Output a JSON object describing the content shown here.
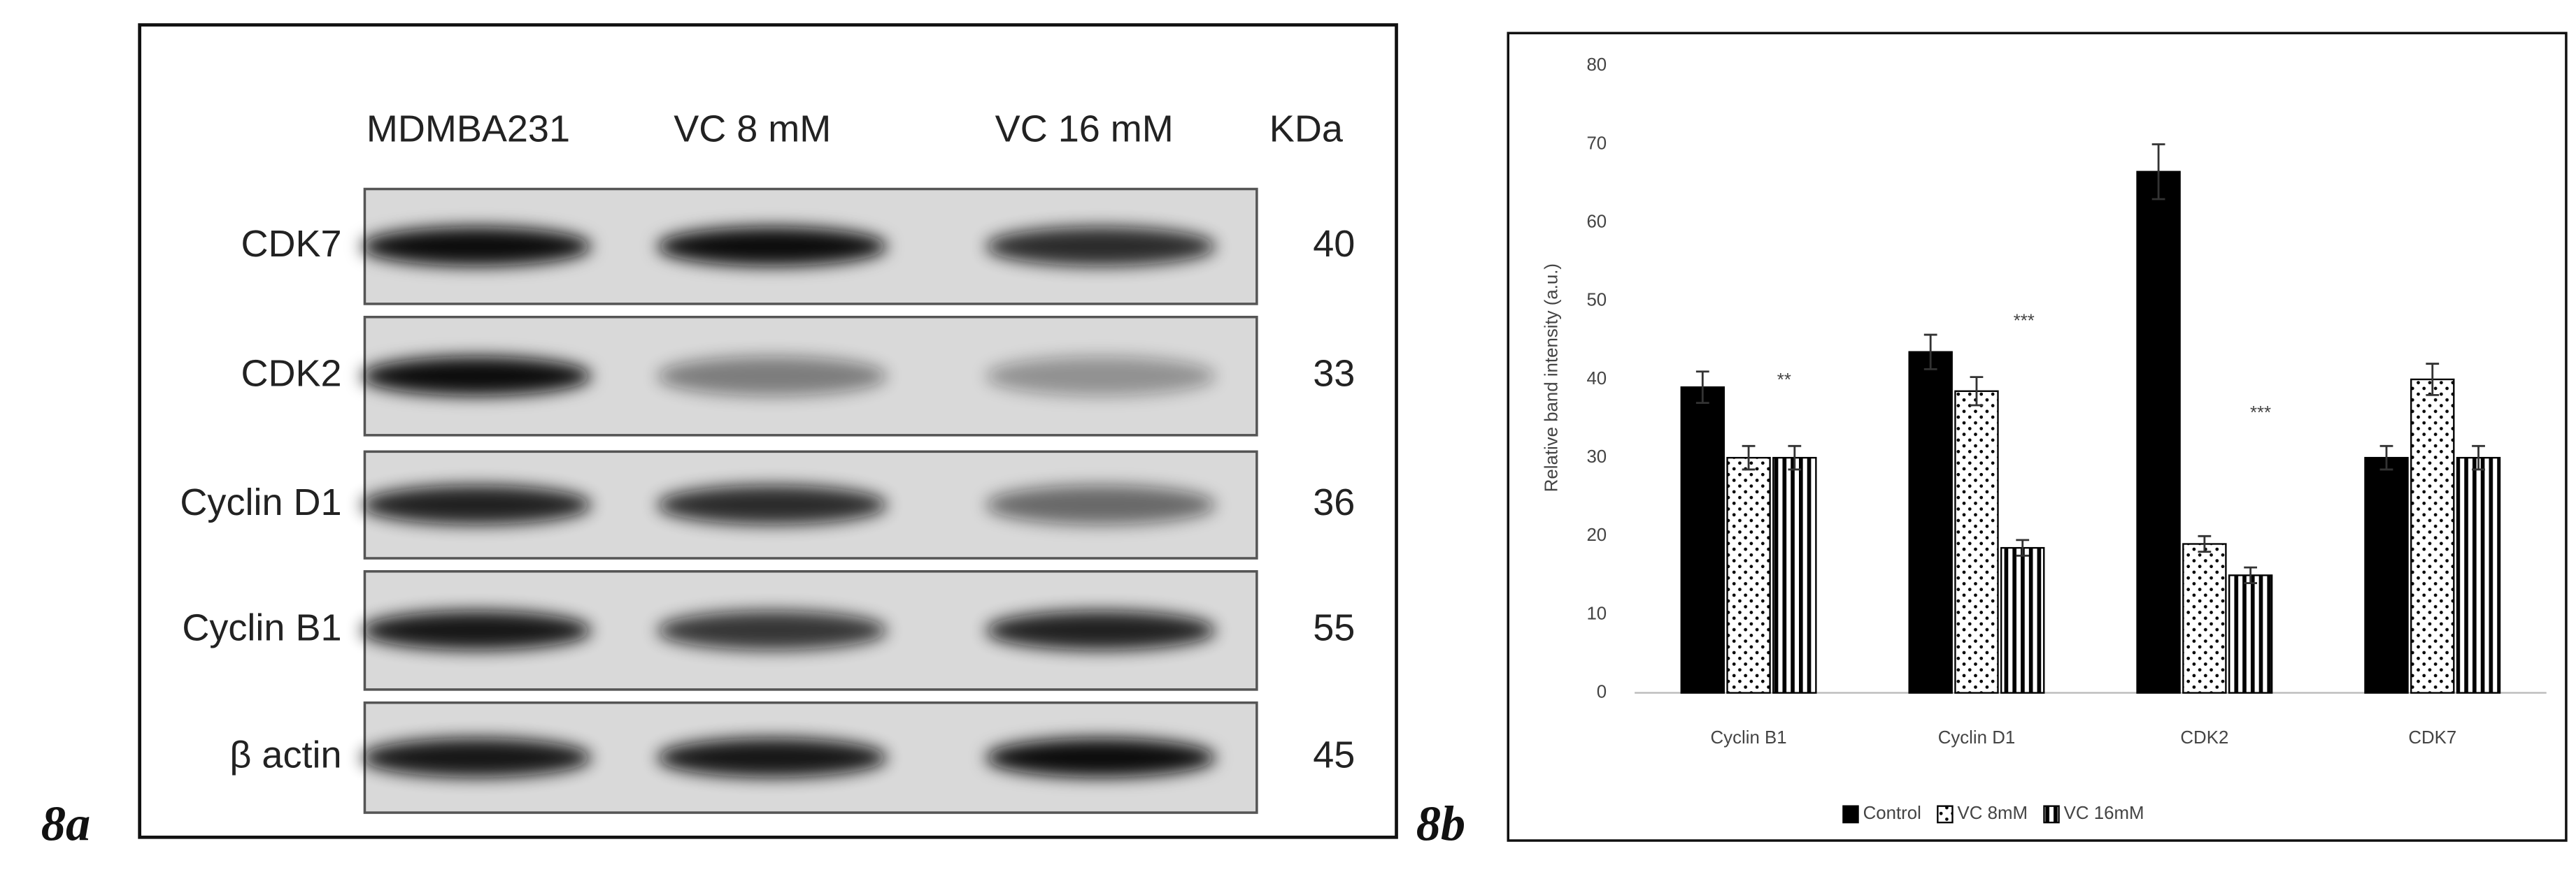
{
  "panel_labels": [
    "8a",
    "8b"
  ],
  "blot": {
    "columns": [
      "MDMBA231",
      "VC 8 mM",
      "VC 16 mM"
    ],
    "kda_header": "KDa",
    "rows": [
      {
        "label": "CDK7",
        "kda": 40
      },
      {
        "label": "CDK2",
        "kda": 33
      },
      {
        "label": "Cyclin D1",
        "kda": 36
      },
      {
        "label": "Cyclin B1",
        "kda": 55
      },
      {
        "label": "β actin",
        "kda": 45
      }
    ]
  },
  "chart_data": {
    "type": "bar",
    "y_label": "Relative band intensity (a.u.)",
    "categories": [
      "Cyclin B1",
      "Cyclin D1",
      "CDK2",
      "CDK7"
    ],
    "series": [
      {
        "name": "Control",
        "color": "#000000",
        "pattern": "solid",
        "values": [
          39,
          43.5,
          66.5,
          30
        ],
        "errors": [
          2,
          2.2,
          3.5,
          1.5
        ]
      },
      {
        "name": "VC 8mM",
        "color": "#000000",
        "pattern": "dots",
        "values": [
          30,
          38.5,
          19,
          40
        ],
        "errors": [
          1.5,
          1.8,
          1,
          2
        ]
      },
      {
        "name": "VC 16mM",
        "color": "#000000",
        "pattern": "stripes",
        "values": [
          30,
          18.5,
          15,
          30
        ],
        "errors": [
          1.5,
          1,
          1,
          1.5
        ]
      }
    ],
    "annotations": [
      "**",
      "***",
      "***"
    ],
    "ylim": [
      0,
      80
    ],
    "yticks": [
      0,
      10,
      20,
      30,
      40,
      50,
      60,
      70,
      80
    ],
    "grid": false,
    "legend": "bottom"
  }
}
